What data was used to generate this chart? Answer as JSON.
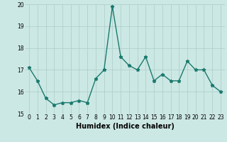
{
  "x": [
    0,
    1,
    2,
    3,
    4,
    5,
    6,
    7,
    8,
    9,
    10,
    11,
    12,
    13,
    14,
    15,
    16,
    17,
    18,
    19,
    20,
    21,
    22,
    23
  ],
  "y": [
    17.1,
    16.5,
    15.7,
    15.4,
    15.5,
    15.5,
    15.6,
    15.5,
    16.6,
    17.0,
    19.9,
    17.6,
    17.2,
    17.0,
    17.6,
    16.5,
    16.8,
    16.5,
    16.5,
    17.4,
    17.0,
    17.0,
    16.3,
    16.0
  ],
  "ylim": [
    15,
    20
  ],
  "xlim": [
    -0.5,
    23.5
  ],
  "yticks": [
    15,
    16,
    17,
    18,
    19,
    20
  ],
  "xticks": [
    0,
    1,
    2,
    3,
    4,
    5,
    6,
    7,
    8,
    9,
    10,
    11,
    12,
    13,
    14,
    15,
    16,
    17,
    18,
    19,
    20,
    21,
    22,
    23
  ],
  "xlabel": "Humidex (Indice chaleur)",
  "line_color": "#1a7a6e",
  "bg_color": "#cce8e4",
  "grid_color": "#b0d0cc",
  "tick_fontsize": 5.5,
  "xlabel_fontsize": 7.0,
  "marker": "*",
  "marker_size": 3.5,
  "linewidth": 1.0
}
